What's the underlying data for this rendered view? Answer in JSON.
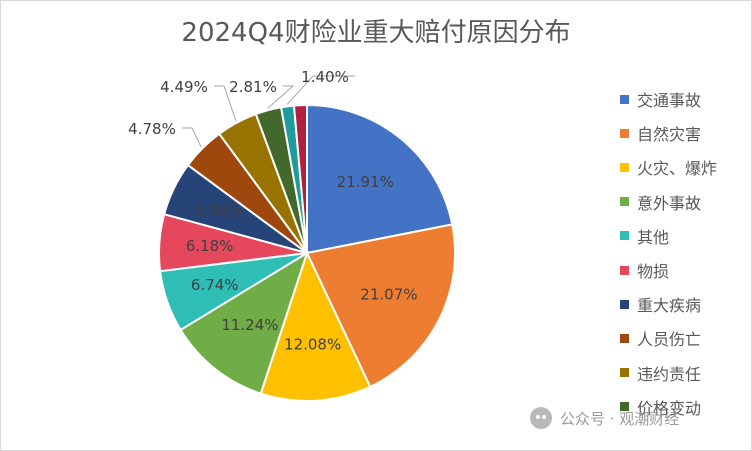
{
  "chart_data": {
    "type": "pie",
    "title": "2024Q4财险业重大赔付原因分布",
    "categories": [
      "交通事故",
      "自然灾害",
      "火灾、爆炸",
      "意外事故",
      "其他",
      "物损",
      "重大疾病",
      "人员伤亡",
      "违约责任",
      "价格变动",
      ""
    ],
    "values": [
      21.91,
      21.07,
      12.08,
      11.24,
      6.74,
      6.18,
      5.9,
      4.78,
      4.49,
      2.81,
      1.4
    ],
    "value_labels": [
      "21.91%",
      "21.07%",
      "12.08%",
      "11.24%",
      "6.74%",
      "6.18%",
      "5.90%",
      "4.78%",
      "4.49%",
      "2.81%",
      "1.40%"
    ],
    "colors": [
      "#4472c4",
      "#ed7d31",
      "#ffc000",
      "#70ad47",
      "#2ebeb5",
      "#e5485d",
      "#264478",
      "#9e480e",
      "#997300",
      "#43682b",
      "#1e9b9b",
      "#b02040"
    ],
    "legend_position": "right"
  },
  "watermark": {
    "icon": "wechat-icon",
    "text": "公众号 · 观潮财经"
  }
}
